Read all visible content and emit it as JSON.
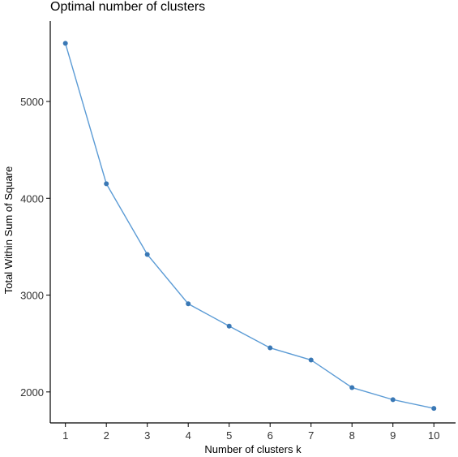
{
  "chart_data": {
    "type": "line",
    "title": "Optimal number of clusters",
    "xlabel": "Number of clusters k",
    "ylabel": "Total Within Sum of Square",
    "x": [
      1,
      2,
      3,
      4,
      5,
      6,
      7,
      8,
      9,
      10
    ],
    "series": [
      {
        "values": [
          5600,
          4150,
          3420,
          2910,
          2680,
          2455,
          2330,
          2045,
          1920,
          1830
        ]
      }
    ],
    "xlim": [
      0.63,
      10.53
    ],
    "ylim": [
      1680,
      5830
    ],
    "xticks": [
      1,
      2,
      3,
      4,
      5,
      6,
      7,
      8,
      9,
      10
    ],
    "yticks": [
      2000,
      3000,
      4000,
      5000
    ],
    "grid": false,
    "legend": "none",
    "line_color": "#5b9bd5",
    "marker_color": "#3a78b5",
    "axis_color": "#000000"
  }
}
